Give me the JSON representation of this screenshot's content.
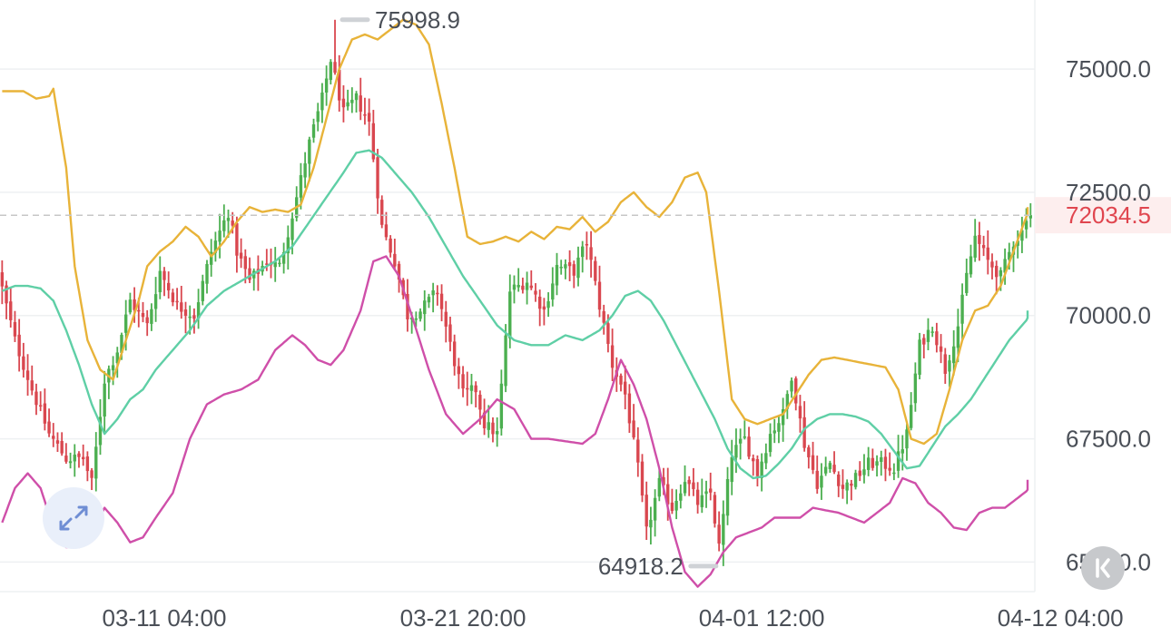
{
  "chart_data": {
    "type": "candlestick",
    "yaxis": {
      "min": 64400,
      "max": 76400,
      "ticks": [
        75000.0,
        72500.0,
        70000.0,
        67500.0,
        65000.0
      ],
      "tick_labels": [
        "75000.0",
        "72500.0",
        "70000.0",
        "67500.0",
        "65000.0"
      ],
      "position": "right"
    },
    "xaxis": {
      "tick_labels": [
        "03-11 04:00",
        "03-21 20:00",
        "04-01 12:00",
        "04-12 04:00"
      ],
      "tick_candle_index": [
        38,
        108,
        178,
        248
      ]
    },
    "grid": true,
    "last_price": {
      "value": 72034.5,
      "label": "72034.5"
    },
    "high_marker": {
      "value": 75998.9,
      "label": "75998.9",
      "candle_index": 78
    },
    "low_marker": {
      "value": 64918.2,
      "label": "64918.2",
      "candle_index": 169
    },
    "colors": {
      "up": "#4caf50",
      "down": "#d9474f",
      "upper_band": "#e8b339",
      "middle_band": "#5fcfa6",
      "lower_band": "#cf4fa9",
      "grid": "#eef0f2",
      "last_price_line": "#c7c7c7",
      "label_bg": "#fdeeee"
    },
    "bands": {
      "upper": [
        [
          0,
          74550
        ],
        [
          5,
          74550
        ],
        [
          8,
          74400
        ],
        [
          11,
          74450
        ],
        [
          12,
          74600
        ],
        [
          15,
          73000
        ],
        [
          17,
          71000
        ],
        [
          20,
          69500
        ],
        [
          23,
          68900
        ],
        [
          26,
          68700
        ],
        [
          29,
          69500
        ],
        [
          32,
          70300
        ],
        [
          34,
          71000
        ],
        [
          37,
          71300
        ],
        [
          40,
          71500
        ],
        [
          43,
          71800
        ],
        [
          46,
          71600
        ],
        [
          49,
          71200
        ],
        [
          52,
          71500
        ],
        [
          55,
          71900
        ],
        [
          58,
          72200
        ],
        [
          61,
          72100
        ],
        [
          64,
          72150
        ],
        [
          67,
          72100
        ],
        [
          70,
          72250
        ],
        [
          73,
          73000
        ],
        [
          76,
          74000
        ],
        [
          79,
          75000
        ],
        [
          82,
          75600
        ],
        [
          85,
          75700
        ],
        [
          88,
          75600
        ],
        [
          91,
          75800
        ],
        [
          94,
          76000
        ],
        [
          97,
          75900
        ],
        [
          100,
          75500
        ],
        [
          103,
          74300
        ],
        [
          106,
          73000
        ],
        [
          109,
          71600
        ],
        [
          112,
          71450
        ],
        [
          115,
          71500
        ],
        [
          118,
          71600
        ],
        [
          121,
          71500
        ],
        [
          124,
          71700
        ],
        [
          127,
          71550
        ],
        [
          130,
          71800
        ],
        [
          133,
          71750
        ],
        [
          136,
          72000
        ],
        [
          139,
          71700
        ],
        [
          142,
          71900
        ],
        [
          145,
          72300
        ],
        [
          148,
          72500
        ],
        [
          151,
          72200
        ],
        [
          154,
          72000
        ],
        [
          157,
          72300
        ],
        [
          160,
          72800
        ],
        [
          163,
          72900
        ],
        [
          165,
          72500
        ],
        [
          168,
          70500
        ],
        [
          171,
          68300
        ],
        [
          174,
          67900
        ],
        [
          177,
          67800
        ],
        [
          180,
          67900
        ],
        [
          183,
          68000
        ],
        [
          186,
          68400
        ],
        [
          189,
          68800
        ],
        [
          192,
          69100
        ],
        [
          195,
          69150
        ],
        [
          198,
          69100
        ],
        [
          201,
          69050
        ],
        [
          204,
          69000
        ],
        [
          207,
          68950
        ],
        [
          210,
          68500
        ],
        [
          213,
          67500
        ],
        [
          216,
          67400
        ],
        [
          219,
          67600
        ],
        [
          222,
          68500
        ],
        [
          225,
          69500
        ],
        [
          228,
          70100
        ],
        [
          231,
          70200
        ],
        [
          234,
          70600
        ],
        [
          237,
          71300
        ],
        [
          240,
          72000
        ],
        [
          243,
          72300
        ],
        [
          246,
          72500
        ],
        [
          248,
          72700
        ]
      ],
      "middle": [
        [
          0,
          70500
        ],
        [
          3,
          70600
        ],
        [
          6,
          70600
        ],
        [
          9,
          70550
        ],
        [
          12,
          70300
        ],
        [
          15,
          69700
        ],
        [
          18,
          69000
        ],
        [
          21,
          68200
        ],
        [
          24,
          67600
        ],
        [
          27,
          67900
        ],
        [
          30,
          68300
        ],
        [
          33,
          68500
        ],
        [
          36,
          68900
        ],
        [
          40,
          69300
        ],
        [
          44,
          69700
        ],
        [
          48,
          70200
        ],
        [
          52,
          70500
        ],
        [
          56,
          70700
        ],
        [
          60,
          70900
        ],
        [
          64,
          71100
        ],
        [
          68,
          71400
        ],
        [
          72,
          71900
        ],
        [
          76,
          72400
        ],
        [
          80,
          72900
        ],
        [
          83,
          73300
        ],
        [
          86,
          73350
        ],
        [
          89,
          73200
        ],
        [
          92,
          72900
        ],
        [
          96,
          72500
        ],
        [
          100,
          72000
        ],
        [
          104,
          71400
        ],
        [
          108,
          70800
        ],
        [
          112,
          70300
        ],
        [
          116,
          69800
        ],
        [
          120,
          69500
        ],
        [
          124,
          69400
        ],
        [
          128,
          69400
        ],
        [
          132,
          69600
        ],
        [
          136,
          69500
        ],
        [
          140,
          69700
        ],
        [
          143,
          70000
        ],
        [
          146,
          70400
        ],
        [
          149,
          70500
        ],
        [
          152,
          70300
        ],
        [
          155,
          69900
        ],
        [
          158,
          69400
        ],
        [
          161,
          68900
        ],
        [
          164,
          68400
        ],
        [
          167,
          67900
        ],
        [
          170,
          67300
        ],
        [
          173,
          66900
        ],
        [
          176,
          66700
        ],
        [
          179,
          66750
        ],
        [
          182,
          67000
        ],
        [
          185,
          67300
        ],
        [
          188,
          67700
        ],
        [
          191,
          67900
        ],
        [
          194,
          68000
        ],
        [
          197,
          68000
        ],
        [
          200,
          67950
        ],
        [
          203,
          67850
        ],
        [
          206,
          67600
        ],
        [
          209,
          67250
        ],
        [
          212,
          66900
        ],
        [
          215,
          66950
        ],
        [
          218,
          67350
        ],
        [
          221,
          67750
        ],
        [
          224,
          68000
        ],
        [
          227,
          68300
        ],
        [
          230,
          68700
        ],
        [
          233,
          69100
        ],
        [
          236,
          69500
        ],
        [
          239,
          69800
        ],
        [
          242,
          70100
        ],
        [
          245,
          70300
        ],
        [
          248,
          70500
        ]
      ],
      "lower": [
        [
          0,
          65800
        ],
        [
          3,
          66500
        ],
        [
          6,
          66800
        ],
        [
          9,
          66500
        ],
        [
          12,
          65700
        ],
        [
          15,
          65300
        ],
        [
          18,
          65300
        ],
        [
          21,
          65600
        ],
        [
          24,
          66100
        ],
        [
          27,
          65800
        ],
        [
          30,
          65400
        ],
        [
          33,
          65500
        ],
        [
          36,
          65900
        ],
        [
          40,
          66400
        ],
        [
          44,
          67500
        ],
        [
          48,
          68200
        ],
        [
          52,
          68400
        ],
        [
          56,
          68500
        ],
        [
          60,
          68700
        ],
        [
          64,
          69300
        ],
        [
          68,
          69600
        ],
        [
          71,
          69400
        ],
        [
          74,
          69100
        ],
        [
          77,
          69000
        ],
        [
          80,
          69300
        ],
        [
          84,
          70100
        ],
        [
          87,
          71100
        ],
        [
          90,
          71200
        ],
        [
          93,
          70800
        ],
        [
          96,
          70000
        ],
        [
          100,
          68900
        ],
        [
          104,
          68000
        ],
        [
          108,
          67600
        ],
        [
          112,
          67900
        ],
        [
          116,
          68300
        ],
        [
          120,
          68100
        ],
        [
          124,
          67500
        ],
        [
          128,
          67500
        ],
        [
          132,
          67450
        ],
        [
          136,
          67400
        ],
        [
          139,
          67600
        ],
        [
          142,
          68300
        ],
        [
          145,
          69100
        ],
        [
          148,
          68600
        ],
        [
          151,
          67900
        ],
        [
          154,
          66900
        ],
        [
          157,
          65700
        ],
        [
          160,
          64800
        ],
        [
          163,
          64500
        ],
        [
          166,
          64750
        ],
        [
          169,
          65200
        ],
        [
          172,
          65500
        ],
        [
          175,
          65600
        ],
        [
          178,
          65700
        ],
        [
          181,
          65900
        ],
        [
          184,
          65900
        ],
        [
          187,
          65900
        ],
        [
          190,
          66100
        ],
        [
          193,
          66050
        ],
        [
          196,
          66000
        ],
        [
          199,
          65900
        ],
        [
          202,
          65800
        ],
        [
          205,
          66000
        ],
        [
          208,
          66200
        ],
        [
          211,
          66700
        ],
        [
          214,
          66600
        ],
        [
          217,
          66200
        ],
        [
          220,
          66000
        ],
        [
          223,
          65700
        ],
        [
          226,
          65650
        ],
        [
          229,
          66000
        ],
        [
          232,
          66100
        ],
        [
          235,
          66100
        ],
        [
          238,
          66300
        ],
        [
          241,
          66500
        ],
        [
          244,
          67000
        ],
        [
          247,
          67100
        ],
        [
          248,
          67150
        ]
      ]
    },
    "anchors": [
      [
        0,
        70900
      ],
      [
        4,
        69500
      ],
      [
        8,
        68500
      ],
      [
        12,
        67600
      ],
      [
        16,
        67100
      ],
      [
        20,
        67100
      ],
      [
        22,
        66600
      ],
      [
        25,
        68700
      ],
      [
        28,
        69300
      ],
      [
        31,
        70300
      ],
      [
        35,
        69800
      ],
      [
        38,
        70900
      ],
      [
        42,
        70200
      ],
      [
        46,
        70000
      ],
      [
        50,
        71300
      ],
      [
        54,
        72100
      ],
      [
        56,
        71300
      ],
      [
        59,
        70700
      ],
      [
        63,
        71100
      ],
      [
        66,
        71000
      ],
      [
        70,
        72400
      ],
      [
        73,
        73500
      ],
      [
        76,
        74400
      ],
      [
        78,
        75200
      ],
      [
        81,
        74100
      ],
      [
        84,
        74400
      ],
      [
        87,
        73900
      ],
      [
        90,
        71800
      ],
      [
        93,
        71100
      ],
      [
        96,
        70000
      ],
      [
        99,
        70100
      ],
      [
        103,
        70500
      ],
      [
        106,
        69400
      ],
      [
        109,
        68400
      ],
      [
        112,
        68500
      ],
      [
        114,
        67800
      ],
      [
        117,
        67600
      ],
      [
        120,
        70500
      ],
      [
        124,
        70700
      ],
      [
        128,
        70100
      ],
      [
        131,
        71000
      ],
      [
        135,
        70900
      ],
      [
        138,
        71500
      ],
      [
        141,
        70200
      ],
      [
        144,
        69000
      ],
      [
        147,
        68400
      ],
      [
        150,
        66900
      ],
      [
        152,
        65600
      ],
      [
        155,
        66600
      ],
      [
        158,
        66100
      ],
      [
        161,
        66700
      ],
      [
        164,
        66200
      ],
      [
        167,
        66400
      ],
      [
        169,
        65300
      ],
      [
        172,
        67200
      ],
      [
        175,
        67500
      ],
      [
        178,
        66800
      ],
      [
        181,
        67600
      ],
      [
        184,
        68000
      ],
      [
        186,
        68800
      ],
      [
        189,
        67400
      ],
      [
        192,
        66600
      ],
      [
        195,
        67000
      ],
      [
        198,
        66500
      ],
      [
        201,
        66700
      ],
      [
        204,
        67000
      ],
      [
        207,
        67000
      ],
      [
        210,
        66900
      ],
      [
        213,
        67600
      ],
      [
        216,
        69400
      ],
      [
        219,
        69800
      ],
      [
        222,
        68900
      ],
      [
        225,
        69800
      ],
      [
        227,
        70800
      ],
      [
        229,
        71600
      ],
      [
        232,
        71100
      ],
      [
        235,
        70800
      ],
      [
        238,
        71500
      ],
      [
        240,
        71700
      ],
      [
        241,
        72034.5
      ]
    ]
  },
  "ui": {
    "collapse_icon": "diagonal-expand-icon",
    "scroll_to_latest_icon": "double-chevron-left-icon"
  }
}
